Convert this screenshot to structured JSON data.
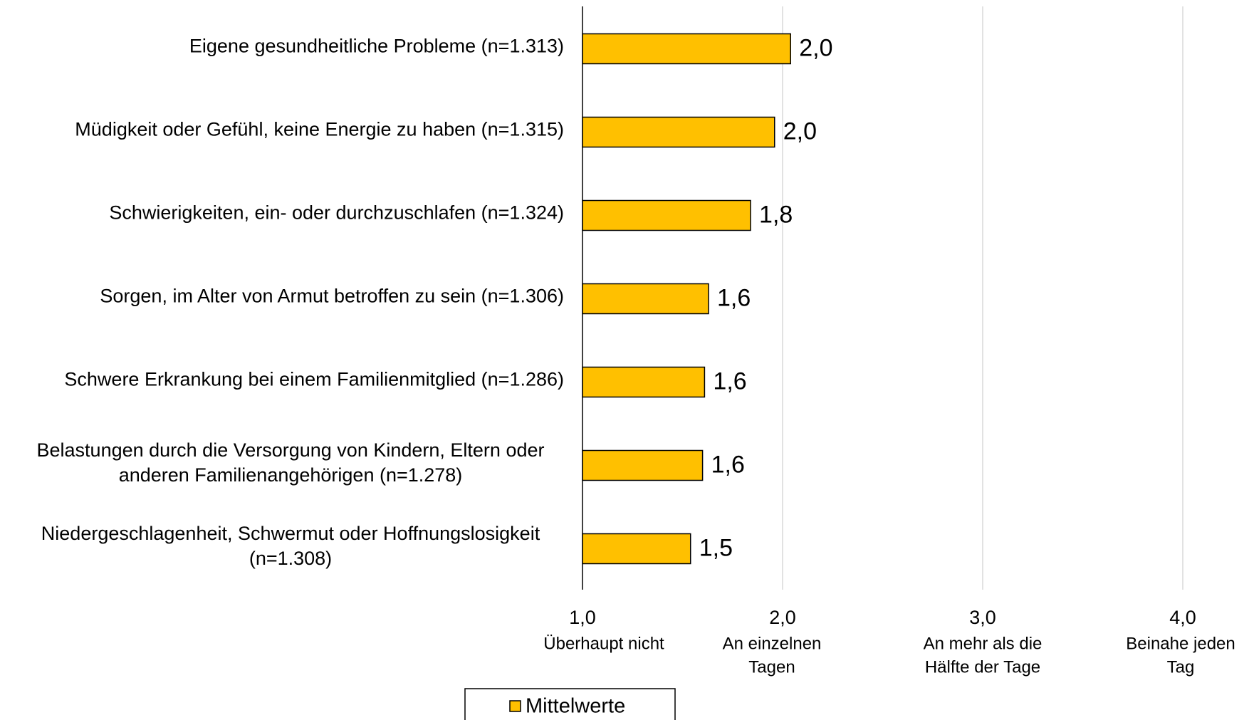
{
  "chart_data": {
    "type": "barh",
    "categories": [
      [
        "Eigene gesundheitliche Probleme (n=1.313)"
      ],
      [
        "Müdigkeit oder Gefühl, keine Energie zu haben (n=1.315)"
      ],
      [
        "Schwierigkeiten, ein- oder durchzuschlafen (n=1.324)"
      ],
      [
        "Sorgen, im Alter von Armut betroffen zu sein (n=1.306)"
      ],
      [
        "Schwere Erkrankung bei einem Familienmitglied (n=1.286)"
      ],
      [
        "Belastungen durch die Versorgung von Kindern, Eltern oder",
        "anderen Familienangehörigen (n=1.278)"
      ],
      [
        "Niedergeschlagenheit, Schwermut oder Hoffnungslosigkeit",
        "(n=1.308)"
      ]
    ],
    "series": [
      {
        "name": "Mittelwerte",
        "color": "#FFC000",
        "values": [
          2.04,
          1.96,
          1.84,
          1.63,
          1.61,
          1.6,
          1.54
        ],
        "value_labels": [
          "2,0",
          "2,0",
          "1,8",
          "1,6",
          "1,6",
          "1,6",
          "1,5"
        ]
      }
    ],
    "xlim": [
      1,
      4
    ],
    "xticks": [
      {
        "value": 1,
        "label": "1,0"
      },
      {
        "value": 2,
        "label": "2,0"
      },
      {
        "value": 3,
        "label": "3,0"
      },
      {
        "value": 4,
        "label": "4,0"
      }
    ],
    "xtick_descriptions": [
      [
        "Überhaupt nicht"
      ],
      [
        "An einzelnen",
        "Tagen"
      ],
      [
        "An mehr als die",
        "Hälfte der Tage"
      ],
      [
        "Beinahe jeden",
        "Tag"
      ]
    ],
    "grid": true
  }
}
